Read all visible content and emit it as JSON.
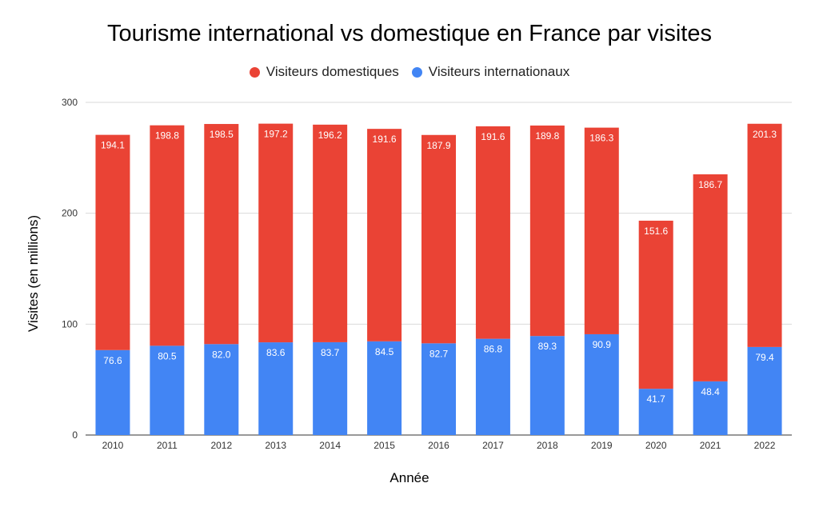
{
  "chart_data": {
    "type": "bar",
    "stacked": true,
    "title": "Tourisme international vs domestique en France par visites",
    "xlabel": "Année",
    "ylabel": "Visites (en millions)",
    "ylim": [
      0,
      300
    ],
    "yticks": [
      "0",
      "100",
      "200",
      "300"
    ],
    "grid": true,
    "legend_position": "top-center",
    "categories": [
      "2010",
      "2011",
      "2012",
      "2013",
      "2014",
      "2015",
      "2016",
      "2017",
      "2018",
      "2019",
      "2020",
      "2021",
      "2022"
    ],
    "series": [
      {
        "name": "Visiteurs domestiques",
        "color": "#EA4335",
        "values": [
          194.1,
          198.8,
          198.5,
          197.2,
          196.2,
          191.6,
          187.9,
          191.6,
          189.8,
          186.3,
          151.6,
          186.7,
          201.3
        ],
        "labels": [
          "194.1",
          "198.8",
          "198.5",
          "197.2",
          "196.2",
          "191.6",
          "187.9",
          "191.6",
          "189.8",
          "186.3",
          "151.6",
          "186.7",
          "201.3"
        ]
      },
      {
        "name": "Visiteurs internationaux",
        "color": "#4285F4",
        "values": [
          76.6,
          80.5,
          82.0,
          83.6,
          83.7,
          84.5,
          82.7,
          86.8,
          89.3,
          90.9,
          41.7,
          48.4,
          79.4
        ],
        "labels": [
          "76.6",
          "80.5",
          "82.0",
          "83.6",
          "83.7",
          "84.5",
          "82.7",
          "86.8",
          "89.3",
          "90.9",
          "41.7",
          "48.4",
          "79.4"
        ]
      }
    ]
  }
}
